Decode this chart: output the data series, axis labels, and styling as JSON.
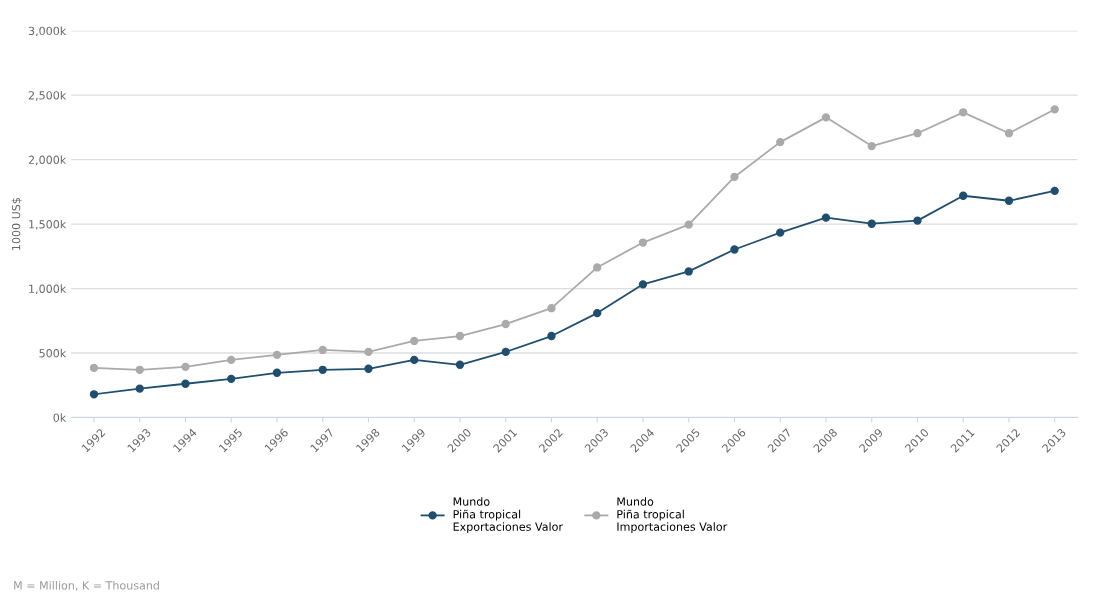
{
  "chart_data": {
    "type": "line",
    "ylabel": "1000 US$",
    "categories": [
      "1992",
      "1993",
      "1994",
      "1995",
      "1996",
      "1997",
      "1998",
      "1999",
      "2000",
      "2001",
      "2002",
      "2003",
      "2004",
      "2005",
      "2006",
      "2007",
      "2008",
      "2009",
      "2010",
      "2011",
      "2012",
      "2013"
    ],
    "series": [
      {
        "name": "Mundo\nPiña tropical\nExportaciones Valor",
        "color": "#1f4e6e",
        "values": [
          180,
          224,
          262,
          300,
          347,
          370,
          378,
          447,
          409,
          509,
          632,
          810,
          1033,
          1133,
          1303,
          1434,
          1550,
          1503,
          1527,
          1720,
          1681,
          1758
        ]
      },
      {
        "name": "Mundo\nPiña tropical\nImportaciones Valor",
        "color": "#aaaaaa",
        "values": [
          385,
          370,
          393,
          447,
          486,
          524,
          509,
          594,
          632,
          725,
          848,
          1164,
          1357,
          1496,
          1866,
          2136,
          2328,
          2105,
          2205,
          2367,
          2205,
          2390
        ]
      }
    ],
    "ylim": [
      0,
      3000
    ],
    "yticks": [
      {
        "value": 0,
        "label": "0k"
      },
      {
        "value": 500,
        "label": "500k"
      },
      {
        "value": 1000,
        "label": "1,000k"
      },
      {
        "value": 1500,
        "label": "1,500k"
      },
      {
        "value": 2000,
        "label": "2,000k"
      },
      {
        "value": 2500,
        "label": "2,500k"
      },
      {
        "value": 3000,
        "label": "3,000k"
      }
    ],
    "grid": "y",
    "legend": "bottom",
    "marker": "circle",
    "annotations": [
      "M = Million, K = Thousand"
    ]
  }
}
